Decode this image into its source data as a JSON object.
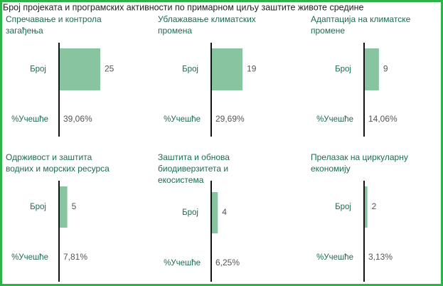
{
  "title": "Број пројеката и програмских активности по примарном циљу заштите животе средине",
  "chart_data": [
    {
      "type": "bar",
      "title": [
        "Спречавање и контрола",
        "загађења"
      ],
      "categories": [
        "Број"
      ],
      "values": [
        25
      ],
      "color": "#88c4a0",
      "share": {
        "label": "%Учешће",
        "value": 39.06,
        "value_label": "39,06%"
      }
    },
    {
      "type": "bar",
      "title": [
        "Ублажавање климатских",
        "промена"
      ],
      "categories": [
        "Број"
      ],
      "values": [
        19
      ],
      "color": "#88c4a0",
      "share": {
        "label": "%Учешће",
        "value": 29.69,
        "value_label": "29,69%"
      }
    },
    {
      "type": "bar",
      "title": [
        "Адаптација на климатске",
        "промене"
      ],
      "categories": [
        "Број"
      ],
      "values": [
        9
      ],
      "color": "#88c4a0",
      "share": {
        "label": "%Учешће",
        "value": 14.06,
        "value_label": "14,06%"
      }
    },
    {
      "type": "bar",
      "title": [
        "Одрживост и заштита",
        "водних и морских ресурса"
      ],
      "categories": [
        "Број"
      ],
      "values": [
        5
      ],
      "color": "#88c4a0",
      "share": {
        "label": "%Учешће",
        "value": 7.81,
        "value_label": "7,81%"
      }
    },
    {
      "type": "bar",
      "title": [
        "Заштита и обнова",
        "биодиверзитета и",
        "екосистема"
      ],
      "categories": [
        "Број"
      ],
      "values": [
        4
      ],
      "color": "#88c4a0",
      "share": {
        "label": "%Учешће",
        "value": 6.25,
        "value_label": "6,25%"
      }
    },
    {
      "type": "bar",
      "title": [
        "Прелазак на циркуларну",
        "економију"
      ],
      "categories": [
        "Број"
      ],
      "values": [
        2
      ],
      "color": "#88c4a0",
      "share": {
        "label": "%Учешће",
        "value": 3.13,
        "value_label": "3,13%"
      }
    }
  ]
}
